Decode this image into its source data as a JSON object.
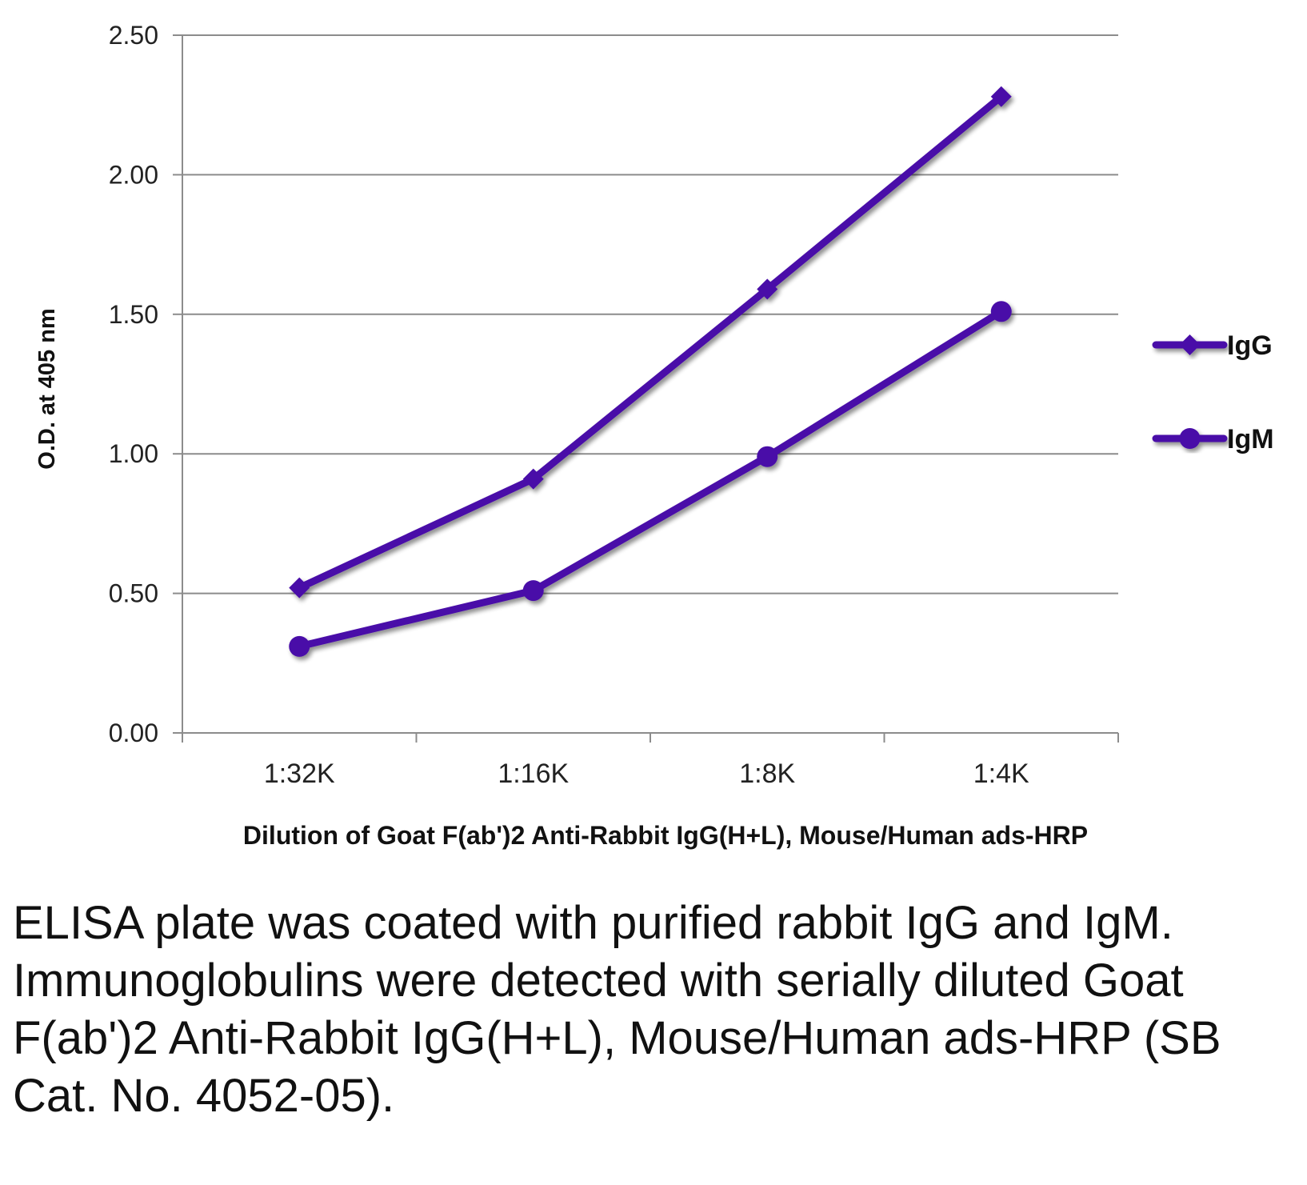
{
  "chart_data": {
    "type": "line",
    "title": "",
    "xlabel": "Dilution of Goat F(ab')2 Anti-Rabbit IgG(H+L), Mouse/Human ads-HRP",
    "ylabel": "O.D. at 405 nm",
    "categories": [
      "1:32K",
      "1:16K",
      "1:8K",
      "1:4K"
    ],
    "ylim": [
      0,
      2.5
    ],
    "yticks": [
      "0.00",
      "0.50",
      "1.00",
      "1.50",
      "2.00",
      "2.50"
    ],
    "grid": true,
    "legend_position": "right",
    "series": [
      {
        "name": "IgG",
        "marker": "diamond",
        "values": [
          0.52,
          0.91,
          1.59,
          2.28
        ]
      },
      {
        "name": "IgM",
        "marker": "circle",
        "values": [
          0.31,
          0.51,
          0.99,
          1.51
        ]
      }
    ],
    "line_color": "#4a0fa8"
  },
  "caption": "ELISA plate was coated with purified rabbit IgG and IgM.  Immunoglobulins were detected with serially diluted Goat F(ab')2 Anti-Rabbit IgG(H+L), Mouse/Human ads-HRP (SB Cat. No. 4052-05)."
}
